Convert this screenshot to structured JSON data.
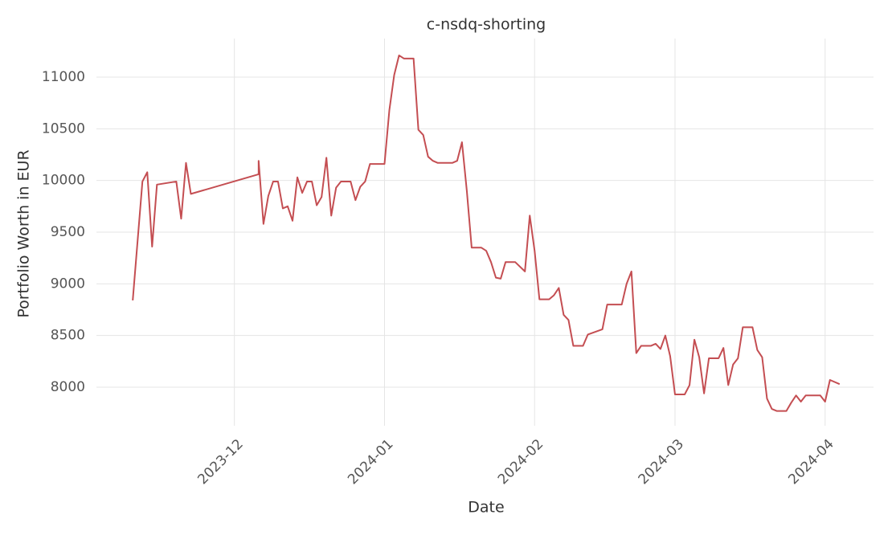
{
  "chart_data": {
    "type": "line",
    "title": "c-nsdq-shorting",
    "x_label": "Date",
    "y_label": "Portfolio Worth in EUR",
    "x": [
      9,
      11,
      12,
      13,
      14,
      18,
      19,
      20,
      21,
      35,
      35,
      36,
      37,
      38,
      39,
      40,
      41,
      42,
      43,
      44,
      45,
      46,
      47,
      48,
      49,
      50,
      51,
      52,
      54,
      55,
      56,
      57,
      58,
      61,
      62,
      63,
      64,
      65,
      67,
      68,
      69,
      70,
      71,
      72,
      75,
      76,
      77,
      78,
      79,
      81,
      82,
      83,
      84,
      85,
      86,
      88,
      90,
      91,
      92,
      93,
      95,
      96,
      97,
      98,
      99,
      100,
      102,
      103,
      106,
      107,
      110,
      111,
      112,
      113,
      114,
      116,
      117,
      118,
      119,
      120,
      121,
      123,
      124,
      125,
      126,
      127,
      128,
      130,
      131,
      132,
      133,
      134,
      135,
      137,
      138,
      139,
      140,
      141,
      142,
      144,
      145,
      146,
      147,
      148,
      151,
      152,
      153,
      155
    ],
    "values": [
      8840,
      9990,
      10080,
      9360,
      9960,
      9990,
      9630,
      10170,
      9870,
      10060,
      10190,
      9580,
      9850,
      9990,
      9990,
      9730,
      9750,
      9610,
      10030,
      9880,
      9990,
      9990,
      9760,
      9840,
      10220,
      9660,
      9930,
      9990,
      9990,
      9810,
      9940,
      9990,
      10160,
      10160,
      10680,
      11020,
      11210,
      11180,
      11180,
      10490,
      10440,
      10230,
      10190,
      10170,
      10170,
      10190,
      10370,
      9900,
      9350,
      9350,
      9320,
      9210,
      9060,
      9050,
      9210,
      9210,
      9120,
      9660,
      9320,
      8850,
      8850,
      8890,
      8960,
      8700,
      8650,
      8400,
      8400,
      8510,
      8560,
      8800,
      8800,
      9000,
      9120,
      8330,
      8400,
      8400,
      8420,
      8370,
      8500,
      8300,
      7930,
      7930,
      8020,
      8460,
      8290,
      7940,
      8280,
      8280,
      8380,
      8020,
      8220,
      8280,
      8580,
      8580,
      8360,
      8290,
      7890,
      7790,
      7770,
      7770,
      7850,
      7920,
      7860,
      7920,
      7920,
      7860,
      8070,
      8030
    ],
    "color": "#c44e52",
    "xlim": [
      1.5,
      162
    ],
    "xticks": [
      {
        "value": 30,
        "label": "2023-12"
      },
      {
        "value": 61,
        "label": "2024-01"
      },
      {
        "value": 92,
        "label": "2024-02"
      },
      {
        "value": 121,
        "label": "2024-03"
      },
      {
        "value": 152,
        "label": "2024-04"
      }
    ],
    "ylim": [
      7627,
      11373
    ],
    "yticks": [
      8000,
      8500,
      9000,
      9500,
      10000,
      10500,
      11000
    ],
    "grid": true
  }
}
